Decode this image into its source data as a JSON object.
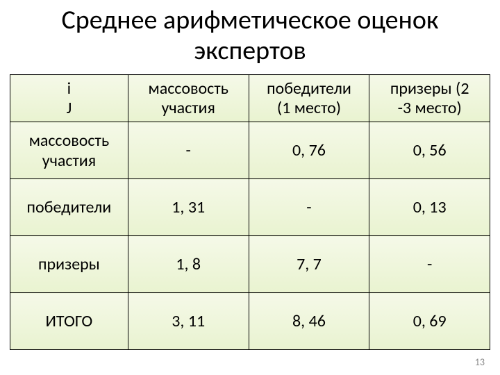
{
  "title": "Среднее арифметическое оценок экспертов",
  "table": {
    "columns": [
      {
        "label_line1": "i",
        "label_line2": "J"
      },
      {
        "label_line1": "массовость",
        "label_line2": "участия"
      },
      {
        "label_line1": "победители",
        "label_line2": "(1 место)"
      },
      {
        "label_line1": "призеры (2",
        "label_line2": "-3 место)"
      }
    ],
    "rows": [
      {
        "label": "массовость участия",
        "cells": [
          "-",
          "0, 76",
          "0, 56"
        ]
      },
      {
        "label": "победители",
        "cells": [
          "1, 31",
          "-",
          "0, 13"
        ]
      },
      {
        "label": "призеры",
        "cells": [
          "1, 8",
          "7, 7",
          "-"
        ]
      },
      {
        "label": "ИТОГО",
        "cells": [
          "3, 11",
          "8, 46",
          "0, 69"
        ]
      }
    ],
    "border_color": "#000000",
    "cell_bg_gradient_top": "#f5f9e8",
    "cell_bg_gradient_bottom": "#e9f3d0",
    "font_size": 24,
    "title_font_size": 38
  },
  "page_number": "13"
}
